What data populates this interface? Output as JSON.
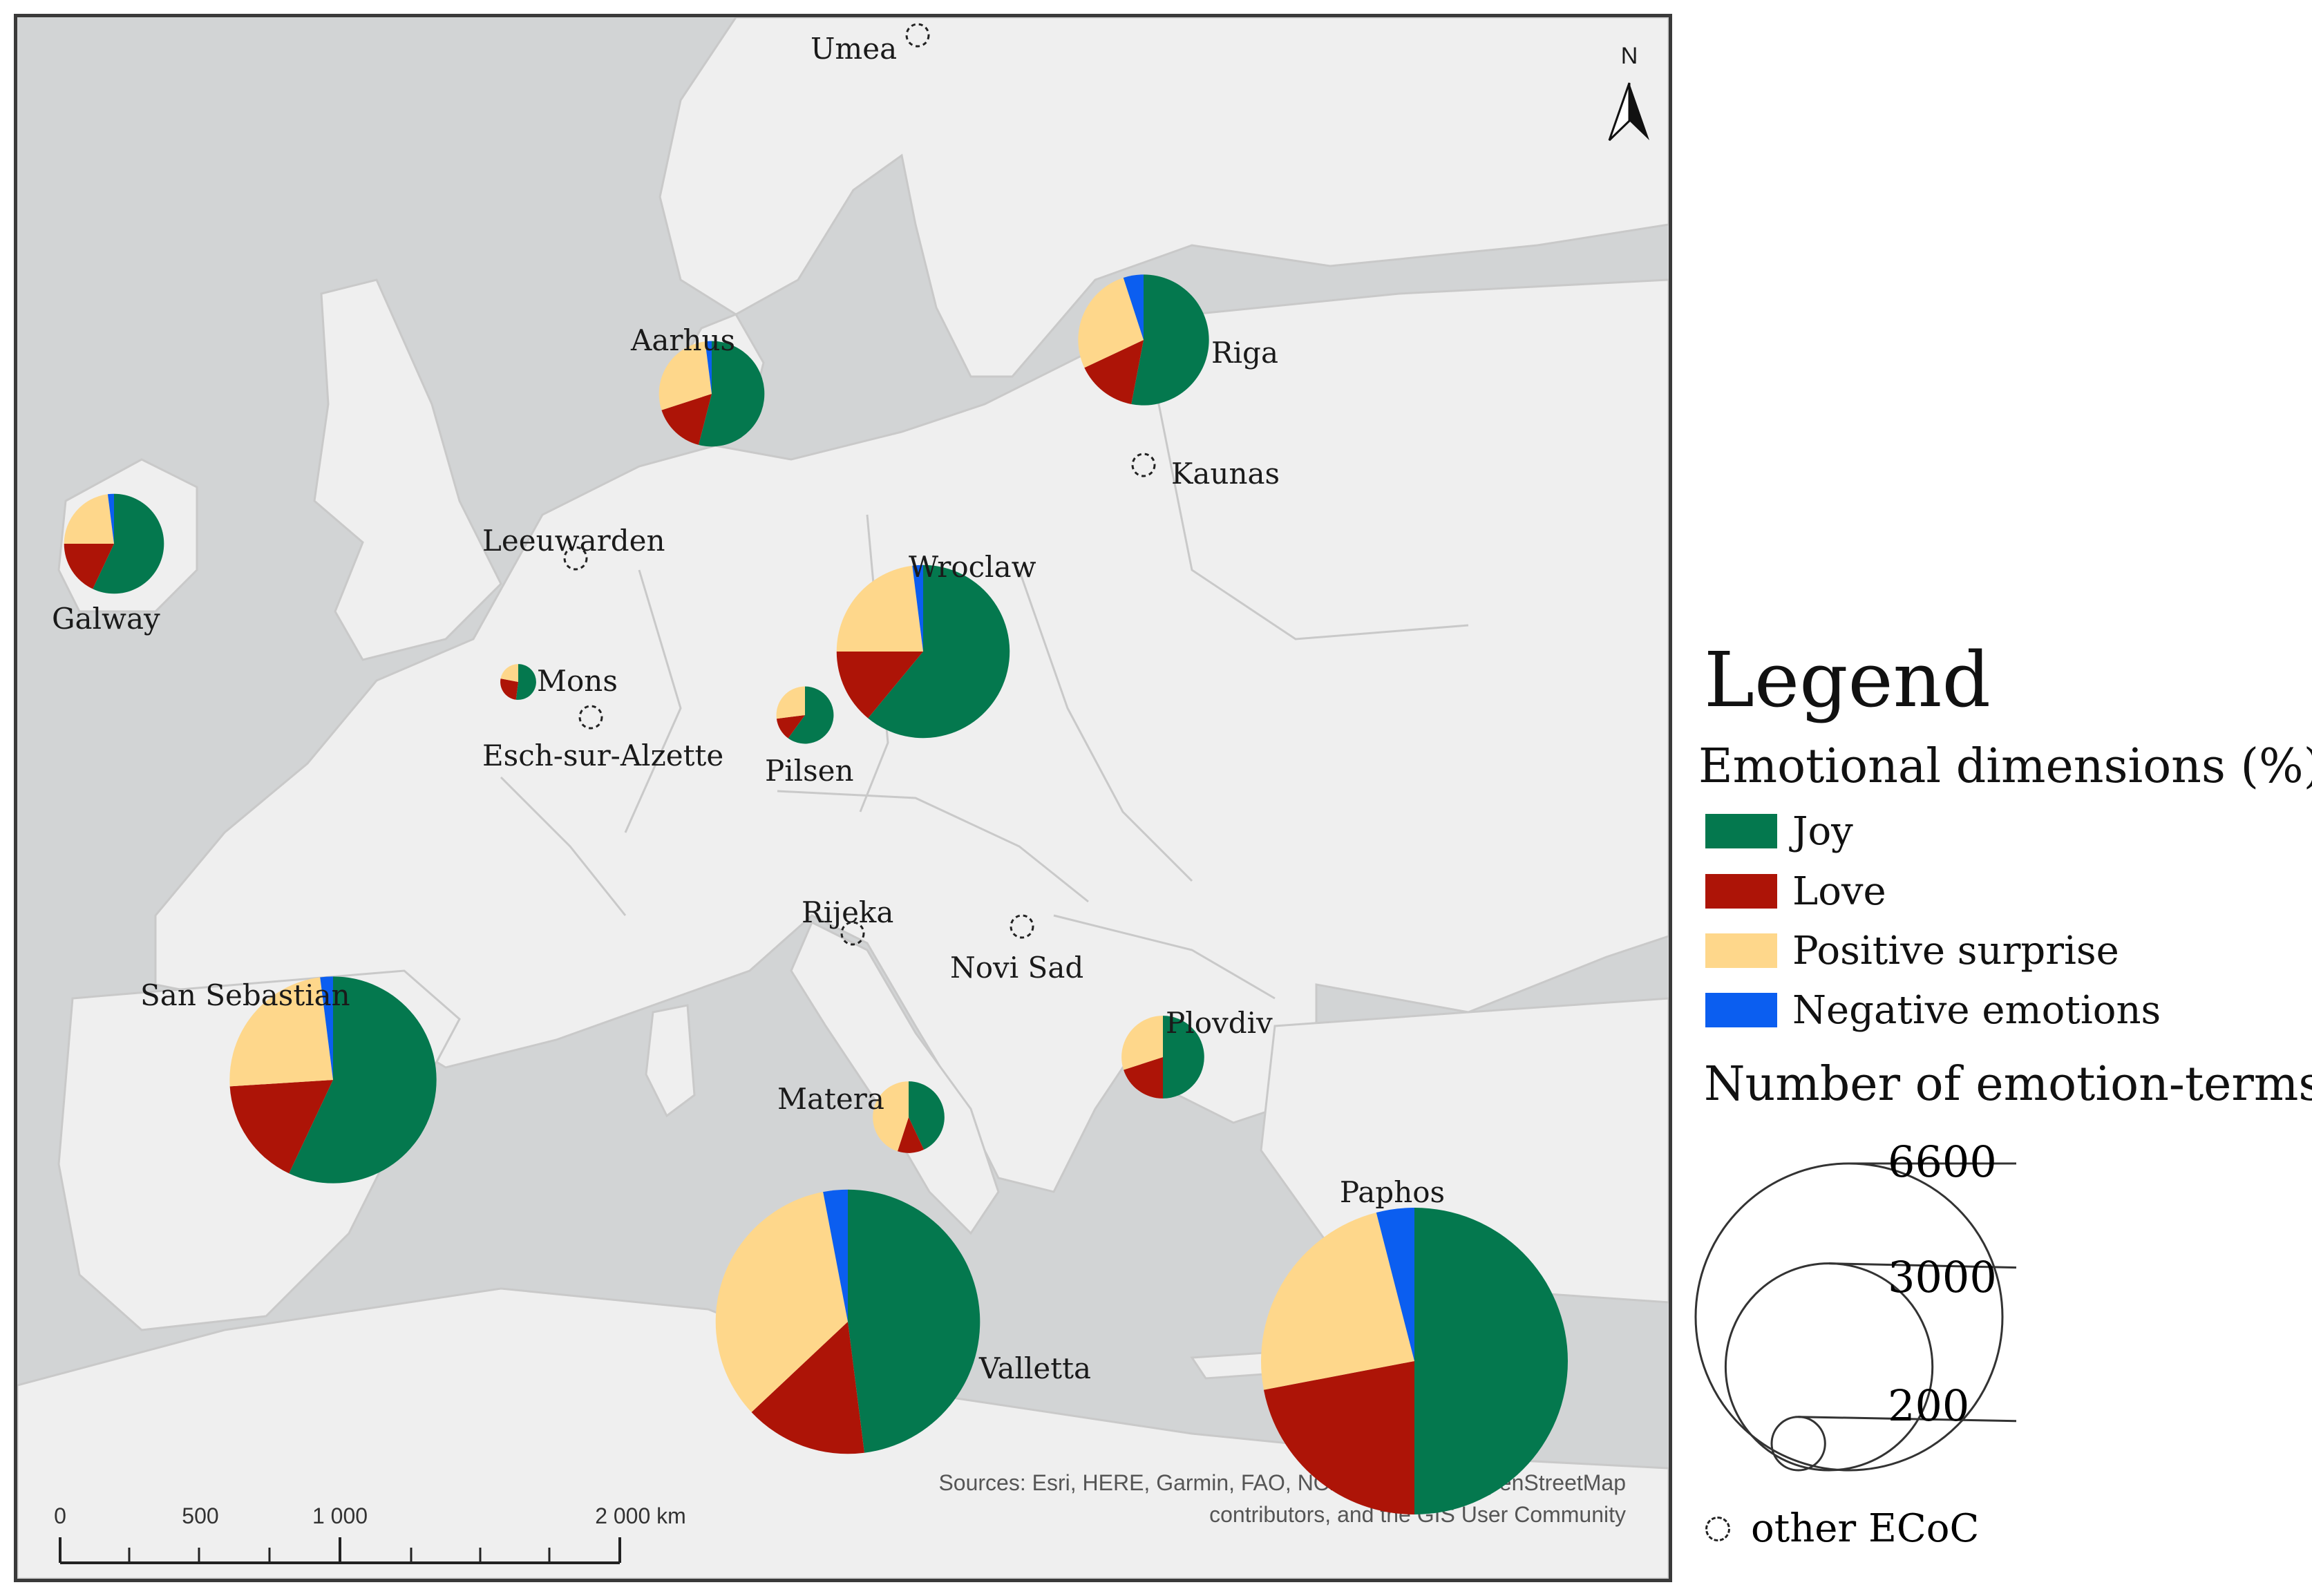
{
  "colors": {
    "joy": "#04784e",
    "love": "#ad1407",
    "positive_surprise": "#fed78b",
    "negative_emotions": "#0b5ef0",
    "land": "#efefef",
    "sea": "#d2d4d5",
    "border": "#c9c9c9"
  },
  "north_arrow": {
    "label": "N",
    "icon": "north-arrow-icon"
  },
  "scale_bar": {
    "ticks": [
      "0",
      "500",
      "1 000",
      "2 000 km"
    ]
  },
  "sources": {
    "line1": "Sources: Esri, HERE, Garmin, FAO, NOAA, USGS, © OpenStreetMap",
    "line2": "contributors, and the GIS User Community"
  },
  "legend": {
    "title": "Legend",
    "dimensions_title": "Emotional dimensions (%)",
    "categories": [
      {
        "key": "joy",
        "label": "Joy"
      },
      {
        "key": "love",
        "label": "Love"
      },
      {
        "key": "positive_surprise",
        "label": "Positive surprise"
      },
      {
        "key": "negative_emotions",
        "label": "Negative emotions"
      }
    ],
    "size_title": "Number of emotion-terms",
    "size_classes": [
      "6600",
      "3000",
      "200"
    ],
    "other_label": "other ECoC",
    "other_icon": "dashed-circle-icon"
  },
  "chart_data": {
    "type": "pie",
    "categories": [
      "Joy",
      "Love",
      "Positive surprise",
      "Negative emotions"
    ],
    "cities": [
      {
        "name": "Paphos",
        "total": 6600,
        "values": [
          50,
          22,
          24,
          4
        ]
      },
      {
        "name": "Valletta",
        "total": 4900,
        "values": [
          48,
          15,
          34,
          3
        ]
      },
      {
        "name": "San Sebastian",
        "total": 3000,
        "values": [
          57,
          17,
          24,
          2
        ]
      },
      {
        "name": "Wroclaw",
        "total": 2100,
        "values": [
          61,
          14,
          23,
          2
        ]
      },
      {
        "name": "Riga",
        "total": 1200,
        "values": [
          53,
          15,
          27,
          5
        ]
      },
      {
        "name": "Aarhus",
        "total": 780,
        "values": [
          54,
          16,
          28,
          2
        ]
      },
      {
        "name": "Galway",
        "total": 700,
        "values": [
          57,
          18,
          23,
          2
        ]
      },
      {
        "name": "Plovdiv",
        "total": 480,
        "values": [
          50,
          20,
          30,
          0
        ]
      },
      {
        "name": "Matera",
        "total": 360,
        "values": [
          43,
          12,
          45,
          0
        ]
      },
      {
        "name": "Pilsen",
        "total": 230,
        "values": [
          60,
          13,
          27,
          0
        ]
      },
      {
        "name": "Mons",
        "total": 90,
        "values": [
          52,
          26,
          22,
          0
        ]
      }
    ],
    "other_ecoc": [
      "Umea",
      "Kaunas",
      "Leeuwarden",
      "Esch-sur-Alzette",
      "Rijeka",
      "Novi Sad"
    ]
  }
}
